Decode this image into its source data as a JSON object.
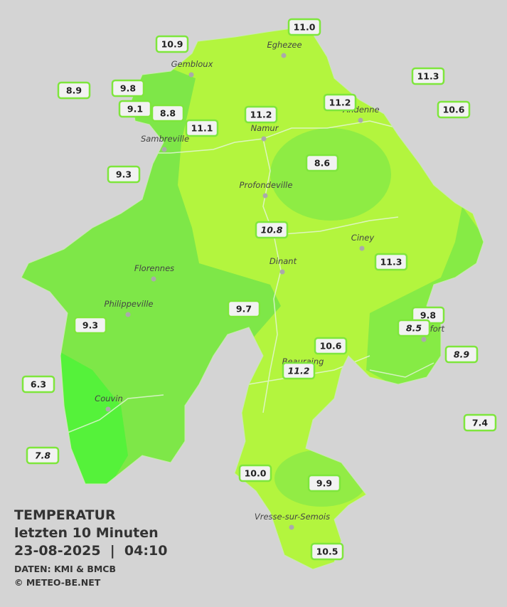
{
  "legend": {
    "title": "TEMPERATUR",
    "period": "letzten 10 Minuten",
    "datetime": "23-08-2025  |  04:10",
    "source": "DATEN: KMI & BMCB",
    "copyright": "© METEO-BE.NET"
  },
  "cities": [
    "Eghezee",
    "Gembloux",
    "Andenne",
    "Namur",
    "Sambreville",
    "Profondeville",
    "Ciney",
    "Dinant",
    "Florennes",
    "Philippeville",
    "Rochefort",
    "Beauraing",
    "Couvin",
    "Vresse-sur-Semois"
  ],
  "stations": [
    "10.9",
    "11.0",
    "8.9",
    "9.8",
    "9.1",
    "8.8",
    "11.1",
    "11.2",
    "11.2",
    "11.3",
    "10.6",
    "9.3",
    "8.6",
    "10.8",
    "11.3",
    "9.7",
    "9.3",
    "9.8",
    "8.5",
    "10.6",
    "8.9",
    "11.2",
    "6.3",
    "7.4",
    "7.8",
    "10.0",
    "9.9",
    "10.5"
  ]
}
